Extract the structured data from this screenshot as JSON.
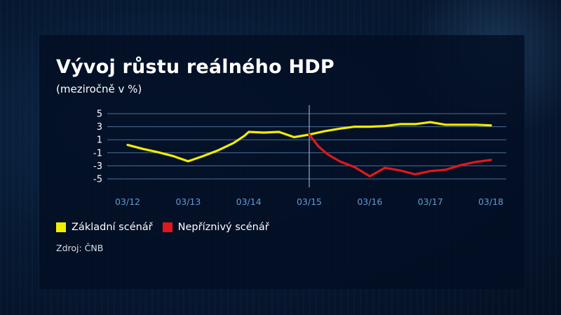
{
  "title": "Vývoj růstu reálného HDP",
  "subtitle": "(meziročně v %)",
  "source": "Zdroj: ČNB",
  "colors": {
    "baseline": "#f2ec00",
    "adverse": "#e0181c",
    "grid": "#4c6f96",
    "tick": "#5f9dd6"
  },
  "chart_data": {
    "type": "line",
    "title": "Vývoj růstu reálného HDP",
    "subtitle": "(meziročně v %)",
    "xlabel": "",
    "ylabel": "",
    "ylim": [
      -5,
      5
    ],
    "yticks": [
      5,
      3,
      1,
      -1,
      -3,
      -5
    ],
    "grid": true,
    "legend_position": "bottom-left",
    "xticks": [
      "03/12",
      "03/13",
      "03/14",
      "03/15",
      "03/16",
      "03/17",
      "03/18"
    ],
    "forecast_divider_at": "03/15",
    "series": [
      {
        "name": "Základní scénář",
        "color": "#f2ec00",
        "points": [
          [
            0.0,
            0.2
          ],
          [
            0.25,
            -0.4
          ],
          [
            0.5,
            -0.9
          ],
          [
            0.75,
            -1.5
          ],
          [
            1.0,
            -2.3
          ],
          [
            1.25,
            -1.5
          ],
          [
            1.5,
            -0.6
          ],
          [
            1.75,
            0.5
          ],
          [
            1.93,
            1.6
          ],
          [
            2.0,
            2.2
          ],
          [
            2.25,
            2.1
          ],
          [
            2.5,
            2.2
          ],
          [
            2.75,
            1.4
          ],
          [
            3.0,
            1.8
          ],
          [
            3.25,
            2.3
          ],
          [
            3.5,
            2.7
          ],
          [
            3.75,
            3.0
          ],
          [
            4.0,
            3.0
          ],
          [
            4.25,
            3.1
          ],
          [
            4.5,
            3.4
          ],
          [
            4.75,
            3.4
          ],
          [
            5.0,
            3.7
          ],
          [
            5.25,
            3.3
          ],
          [
            5.5,
            3.3
          ],
          [
            5.75,
            3.3
          ],
          [
            6.0,
            3.2
          ]
        ]
      },
      {
        "name": "Nepříznivý scénář",
        "color": "#e0181c",
        "points": [
          [
            3.0,
            1.8
          ],
          [
            3.15,
            0.0
          ],
          [
            3.3,
            -1.2
          ],
          [
            3.5,
            -2.3
          ],
          [
            3.75,
            -3.2
          ],
          [
            4.0,
            -4.6
          ],
          [
            4.25,
            -3.3
          ],
          [
            4.5,
            -3.7
          ],
          [
            4.75,
            -4.3
          ],
          [
            5.0,
            -3.8
          ],
          [
            5.25,
            -3.6
          ],
          [
            5.5,
            -2.9
          ],
          [
            5.75,
            -2.4
          ],
          [
            6.0,
            -2.1
          ]
        ]
      }
    ]
  }
}
